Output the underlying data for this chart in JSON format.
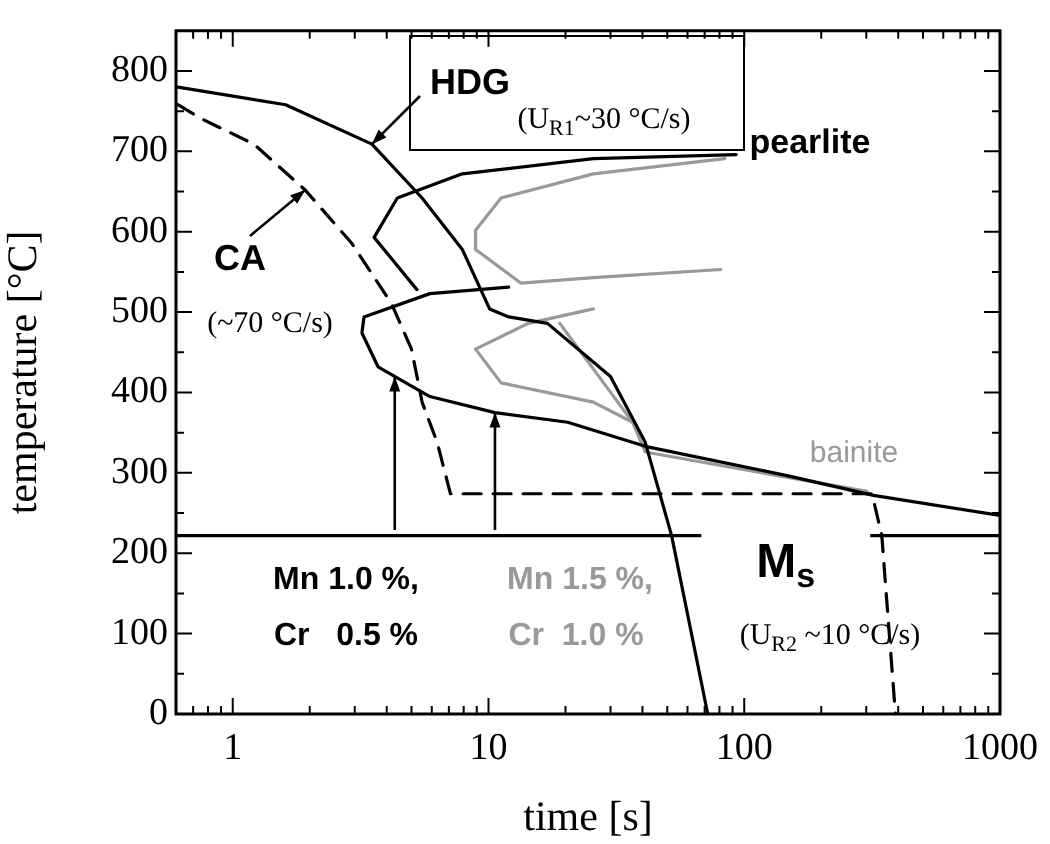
{
  "chart_data": {
    "type": "line",
    "xlabel": "time [s]",
    "ylabel": "temperature [°C]",
    "log": "x",
    "grid": false,
    "legend": false,
    "xlim": [
      0.6,
      1000
    ],
    "ylim": [
      0,
      850
    ],
    "xticks": [
      {
        "value": 0.7,
        "label": null
      },
      {
        "value": 0.8,
        "label": null
      },
      {
        "value": 0.9,
        "label": null
      },
      1,
      {
        "value": 2,
        "label": null
      },
      {
        "value": 3,
        "label": null
      },
      {
        "value": 4,
        "label": null
      },
      {
        "value": 5,
        "label": null
      },
      {
        "value": 6,
        "label": null
      },
      {
        "value": 7,
        "label": null
      },
      {
        "value": 8,
        "label": null
      },
      {
        "value": 9,
        "label": null
      },
      10,
      {
        "value": 20,
        "label": null
      },
      {
        "value": 30,
        "label": null
      },
      {
        "value": 40,
        "label": null
      },
      {
        "value": 50,
        "label": null
      },
      {
        "value": 60,
        "label": null
      },
      {
        "value": 70,
        "label": null
      },
      {
        "value": 80,
        "label": null
      },
      {
        "value": 90,
        "label": null
      },
      100,
      {
        "value": 200,
        "label": null
      },
      {
        "value": 300,
        "label": null
      },
      {
        "value": 400,
        "label": null
      },
      {
        "value": 500,
        "label": null
      },
      {
        "value": 600,
        "label": null
      },
      {
        "value": 700,
        "label": null
      },
      {
        "value": 800,
        "label": null
      },
      {
        "value": 900,
        "label": null
      },
      1000
    ],
    "yticks": [
      0,
      {
        "value": 50,
        "label": null
      },
      100,
      {
        "value": 150,
        "label": null
      },
      200,
      {
        "value": 250,
        "label": null
      },
      300,
      {
        "value": 350,
        "label": null
      },
      400,
      {
        "value": 450,
        "label": null
      },
      500,
      {
        "value": 550,
        "label": null
      },
      600,
      {
        "value": 650,
        "label": null
      },
      700,
      {
        "value": 750,
        "label": null
      },
      800
    ],
    "series": [
      {
        "type": "line",
        "color": "#000000",
        "line_style": "solid",
        "x": [
          0.61,
          1.61,
          3.5,
          5.5,
          7.9,
          10.1,
          12,
          17,
          30,
          41,
          52,
          72
        ],
        "values": [
          780,
          758,
          709,
          642,
          578,
          504,
          494,
          486,
          420,
          338,
          222,
          0
        ]
      },
      {
        "type": "line",
        "color": "#000000",
        "line_style": "dashed",
        "x": [
          0.61,
          0.75,
          1.21,
          1.92,
          2.93,
          4.17,
          5.0,
          5.5,
          6.3,
          7.1,
          316,
          345,
          390
        ],
        "values": [
          758,
          741,
          709,
          652,
          585,
          511,
          454,
          388,
          338,
          274,
          274,
          222,
          0
        ]
      },
      {
        "type": "line",
        "color": "#000000",
        "line_style": "solid",
        "x": [
          5.25,
          3.57,
          4.4,
          7.9,
          25.7,
          93
        ],
        "values": [
          528,
          593,
          642,
          672,
          691,
          696
        ]
      },
      {
        "type": "line",
        "color": "#000000",
        "line_style": "solid",
        "x": [
          12,
          5.9,
          3.26,
          3.2,
          3.7,
          5.9,
          10.6,
          20.4,
          41,
          150,
          320,
          1000
        ],
        "values": [
          531,
          523,
          494,
          474,
          432,
          395,
          375,
          363,
          333,
          296,
          272,
          247
        ]
      },
      {
        "type": "line",
        "color": "#999999",
        "line_style": "solid",
        "x": [
          81,
          25.7,
          13.4,
          8.9,
          8.9,
          11.2,
          25.7,
          84
        ],
        "values": [
          553,
          543,
          536,
          578,
          602,
          642,
          672,
          691
        ]
      },
      {
        "type": "line",
        "color": "#999999",
        "line_style": "solid",
        "x": [
          25.7,
          14.3,
          8.9,
          11.2,
          25.7,
          36.6,
          41,
          150,
          302
        ],
        "values": [
          504,
          486,
          454,
          412,
          388,
          363,
          326,
          294,
          277
        ]
      },
      {
        "type": "line",
        "color": "#999999",
        "line_style": "solid",
        "x": [
          19,
          38
        ],
        "values": [
          486,
          356
        ]
      }
    ],
    "ref_lines": [
      {
        "axis": "y",
        "value": 222,
        "label": "M$_{s}$"
      }
    ],
    "annotations": [
      {
        "text": "HDG",
        "x": 3.5,
        "y": 709
      },
      "(U$_{R1}$~30 °C/s)",
      "pearlite",
      {
        "text": "CA",
        "x": 1.92,
        "y": 652
      },
      "(~70 °C/s)",
      "bainite",
      {
        "text": "Mn 1.0 %,",
        "x": 4.3,
        "y": 420
      },
      "Cr   0.5 %",
      {
        "text": "Mn 1.5 %,",
        "x": 10.6,
        "y": 375
      },
      "Cr  1.0 %",
      "(U$_{R2}$ ~10 °C/s)"
    ]
  }
}
